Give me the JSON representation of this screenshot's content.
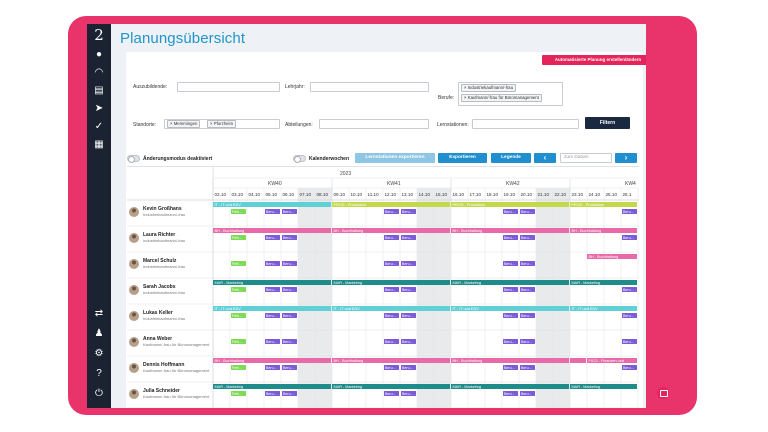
{
  "page": {
    "title": "Planungsübersicht"
  },
  "actions": {
    "auto_plan": "Automatisierte Planung erstellen/ändern",
    "filter": "Filtern"
  },
  "filters": {
    "trainee_label": "Auszubildende:",
    "year_label": "Lehrjahr:",
    "profession_label": "Berufe:",
    "profession_chips": [
      "Industriekaufmann/-frau",
      "Kaufmann/-frau für Büromanagement"
    ],
    "location_label": "Standorte:",
    "location_chips": [
      "Memmingen",
      "Pforzheim"
    ],
    "department_label": "Abteilungen:",
    "station_label": "Lernstationen:"
  },
  "toolbar": {
    "change_mode": "Änderungsmodus deaktiviert",
    "calendar_weeks": "Kalenderwochen",
    "export_stations": "Lernstationen exportieren",
    "export": "Exportieren",
    "legend": "Legende",
    "prev": "‹",
    "next": "›",
    "date_placeholder": "zum Datum"
  },
  "timeline": {
    "year": "2023",
    "weeks": [
      "KW40",
      "KW41",
      "KW42",
      "KW4"
    ],
    "days": [
      "02.10",
      "03.10",
      "04.10",
      "05.10",
      "06.10",
      "07.10",
      "08.10",
      "09.10",
      "10.10",
      "11.10",
      "12.10",
      "13.10",
      "14.10",
      "15.10",
      "16.10",
      "17.10",
      "18.10",
      "19.10",
      "20.10",
      "21.10",
      "22.10",
      "23.10",
      "24.10",
      "25.10",
      "26.1"
    ]
  },
  "people": [
    {
      "name": "Kevin Großhans",
      "role": "Industriekaufmann/-frau"
    },
    {
      "name": "Laura Richter",
      "role": "Industriekaufmann/-frau"
    },
    {
      "name": "Marcel Schulz",
      "role": "Industriekaufmann/-frau"
    },
    {
      "name": "Sarah Jacobs",
      "role": "Industriekaufmann/-frau"
    },
    {
      "name": "Lukas Keller",
      "role": "Industriekaufmann/-frau"
    },
    {
      "name": "Anna Weber",
      "role": "Kaufmann/-frau für Büromanagement"
    },
    {
      "name": "Dennis Hoffmann",
      "role": "Kaufmann/-frau für Büromanagement"
    },
    {
      "name": "Julia Schneider",
      "role": "Kaufmann/-frau für Büromanagement"
    }
  ],
  "bars": [
    [
      {
        "c": "#5fd0d6",
        "segs": [
          [
            0,
            7,
            "IT - IT und EDV"
          ],
          [
            7,
            14,
            "PROD - Produktion"
          ],
          [
            14,
            21,
            "PROD - Produktion"
          ],
          [
            21,
            25,
            "PROD - Produktion"
          ]
        ],
        "band_colors": [
          "#5fd0d6",
          "#c3d94a",
          "#c3d94a",
          "#c3d94a"
        ]
      }
    ],
    [
      {
        "c": "#e96aa8",
        "segs": [
          [
            0,
            7,
            "BH - Buchhaltung"
          ],
          [
            7,
            14,
            "BH - Buchhaltung"
          ],
          [
            14,
            21,
            "BH - Buchhaltung"
          ],
          [
            21,
            25,
            "BH - Buchhaltung"
          ]
        ],
        "band_colors": [
          "#e96aa8",
          "#e96aa8",
          "#e96aa8",
          "#e96aa8"
        ]
      }
    ],
    [
      {
        "c": "#e96aa8",
        "segs": [
          [
            22,
            25,
            "BH - Buchhaltung"
          ]
        ],
        "band_colors": [
          "#e96aa8"
        ]
      }
    ],
    [
      {
        "c": "#1f8c8c",
        "segs": [
          [
            0,
            7,
            "MAR - Marketing"
          ],
          [
            7,
            14,
            "MAR - Marketing"
          ],
          [
            14,
            21,
            "MAR - Marketing"
          ],
          [
            21,
            25,
            "MAR - Marketing"
          ]
        ],
        "band_colors": [
          "#1f8c8c",
          "#1f8c8c",
          "#1f8c8c",
          "#1f8c8c"
        ]
      }
    ],
    [
      {
        "c": "#5fd0d6",
        "segs": [
          [
            0,
            7,
            "IT - IT und EDV"
          ],
          [
            7,
            14,
            "IT - IT und EDV"
          ],
          [
            14,
            21,
            "IT - IT und EDV"
          ],
          [
            21,
            25,
            "IT - IT und EDV"
          ]
        ],
        "band_colors": [
          "#5fd0d6",
          "#5fd0d6",
          "#5fd0d6",
          "#5fd0d6"
        ]
      }
    ],
    [],
    [
      {
        "c": "#e96aa8",
        "segs": [
          [
            0,
            7,
            "BH - Buchhaltung"
          ],
          [
            7,
            14,
            "BH - Buchhaltung"
          ],
          [
            14,
            21,
            "BH - Buchhaltung"
          ],
          [
            21,
            22,
            ""
          ],
          [
            22,
            25,
            "FICO - Finanzen und"
          ]
        ],
        "band_colors": [
          "#e96aa8",
          "#e96aa8",
          "#e96aa8",
          "#e96aa8",
          "#e96aa8"
        ]
      }
    ],
    [
      {
        "c": "#1f8c8c",
        "segs": [
          [
            0,
            7,
            "MAR - Marketing"
          ],
          [
            7,
            14,
            "MAR - Marketing"
          ],
          [
            14,
            21,
            "MAR - Marketing"
          ],
          [
            21,
            25,
            "MAR - Marketing"
          ]
        ],
        "band_colors": [
          "#1f8c8c",
          "#1f8c8c",
          "#1f8c8c",
          "#1f8c8c"
        ]
      }
    ]
  ],
  "tag_labels": {
    "green": "Fehl...",
    "purple": "Beru..."
  },
  "colors": {
    "accent": "#1f95c9",
    "brand": "#e5245b",
    "dark": "#1b2940",
    "green_tag": "#7ed957",
    "purple_tag": "#7b5cd6"
  }
}
